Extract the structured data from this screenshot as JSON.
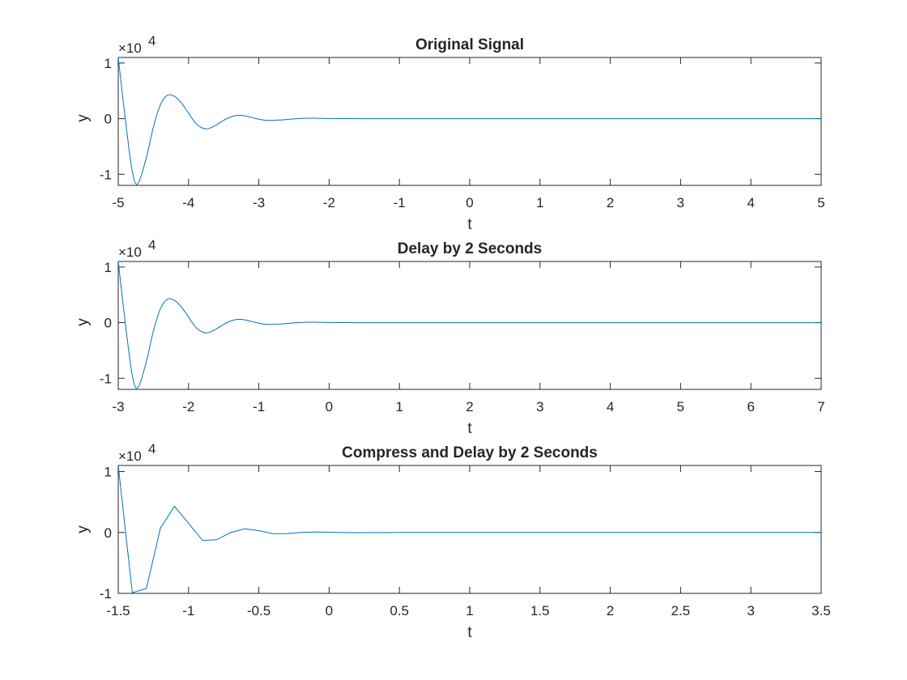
{
  "figure": {
    "line_color": "#0072BD",
    "axes_color": "#262626",
    "background": "#ffffff"
  },
  "chart_data": [
    {
      "type": "line",
      "title": "Original Signal",
      "xlabel": "t",
      "ylabel": "y",
      "y_exponent_label": "×10",
      "y_exponent": "4",
      "xlim": [
        -5,
        5
      ],
      "ylim": [
        -12000,
        11000
      ],
      "xticks": [
        -5,
        -4,
        -3,
        -2,
        -1,
        0,
        1,
        2,
        3,
        4,
        5
      ],
      "xtick_labels": [
        "-5",
        "-4",
        "-3",
        "-2",
        "-1",
        "0",
        "1",
        "2",
        "3",
        "4",
        "5"
      ],
      "yticks": [
        -10000,
        0,
        10000
      ],
      "ytick_labels": [
        "-1",
        "0",
        "1"
      ],
      "grid": false,
      "series": [
        {
          "x": [
            -5,
            -4.9,
            -4.8,
            -4.72,
            -4.6,
            -4.5,
            -4.4,
            -4.3,
            -4.2,
            -4.1,
            -4.0,
            -3.9,
            -3.8,
            -3.72,
            -3.6,
            -3.5,
            -3.4,
            -3.3,
            -3.2,
            -3.1,
            -3.0,
            -2.9,
            -2.8,
            -2.7,
            -2.5,
            -2.3,
            -2.2,
            -2.0,
            -1.8,
            -1.5,
            -1.0,
            -0.5,
            0,
            1,
            2,
            3,
            4,
            5
          ],
          "y": [
            11000,
            0,
            -9500,
            -11700,
            -7000,
            -1500,
            2500,
            4200,
            4000,
            2800,
            1000,
            -800,
            -1700,
            -1800,
            -1100,
            -300,
            300,
            600,
            500,
            200,
            -100,
            -300,
            -320,
            -250,
            -40,
            80,
            90,
            30,
            10,
            0,
            0,
            0,
            0,
            0,
            0,
            0,
            0,
            0
          ]
        }
      ]
    },
    {
      "type": "line",
      "title": "Delay by 2 Seconds",
      "xlabel": "t",
      "ylabel": "y",
      "y_exponent_label": "×10",
      "y_exponent": "4",
      "xlim": [
        -3,
        7
      ],
      "ylim": [
        -12000,
        11000
      ],
      "xticks": [
        -3,
        -2,
        -1,
        0,
        1,
        2,
        3,
        4,
        5,
        6,
        7
      ],
      "xtick_labels": [
        "-3",
        "-2",
        "-1",
        "0",
        "1",
        "2",
        "3",
        "4",
        "5",
        "6",
        "7"
      ],
      "yticks": [
        -10000,
        0,
        10000
      ],
      "ytick_labels": [
        "-1",
        "0",
        "1"
      ],
      "grid": false,
      "series": [
        {
          "x": [
            -3,
            -2.9,
            -2.8,
            -2.72,
            -2.6,
            -2.5,
            -2.4,
            -2.3,
            -2.2,
            -2.1,
            -2.0,
            -1.9,
            -1.8,
            -1.72,
            -1.6,
            -1.5,
            -1.4,
            -1.3,
            -1.2,
            -1.1,
            -1.0,
            -0.9,
            -0.8,
            -0.7,
            -0.5,
            -0.3,
            -0.2,
            0,
            0.2,
            0.5,
            1,
            1.5,
            2,
            3,
            4,
            5,
            6,
            7
          ],
          "y": [
            11000,
            0,
            -9500,
            -11700,
            -7000,
            -1500,
            2500,
            4200,
            4000,
            2800,
            1000,
            -800,
            -1700,
            -1800,
            -1100,
            -300,
            300,
            600,
            500,
            200,
            -100,
            -300,
            -320,
            -250,
            -40,
            80,
            90,
            30,
            10,
            0,
            0,
            0,
            0,
            0,
            0,
            0,
            0,
            0
          ]
        }
      ]
    },
    {
      "type": "line",
      "title": "Compress and Delay by 2 Seconds",
      "xlabel": "t",
      "ylabel": "y",
      "y_exponent_label": "×10",
      "y_exponent": "4",
      "xlim": [
        -1.5,
        3.5
      ],
      "ylim": [
        -10000,
        11000
      ],
      "xticks": [
        -1.5,
        -1,
        -0.5,
        0,
        0.5,
        1,
        1.5,
        2,
        2.5,
        3,
        3.5
      ],
      "xtick_labels": [
        "-1.5",
        "-1",
        "-0.5",
        "0",
        "0.5",
        "1",
        "1.5",
        "2",
        "2.5",
        "3",
        "3.5"
      ],
      "yticks": [
        -10000,
        0,
        10000
      ],
      "ytick_labels": [
        "-1",
        "0",
        "1"
      ],
      "grid": false,
      "series": [
        {
          "x": [
            -1.5,
            -1.4,
            -1.3,
            -1.2,
            -1.1,
            -1.0,
            -0.9,
            -0.8,
            -0.7,
            -0.6,
            -0.5,
            -0.4,
            -0.3,
            -0.2,
            -0.1,
            0,
            0.1,
            0.2,
            0.5,
            1,
            1.5,
            2,
            2.5,
            3,
            3.5
          ],
          "y": [
            11000,
            -9900,
            -9200,
            700,
            4300,
            1500,
            -1300,
            -1200,
            0,
            600,
            300,
            -200,
            -180,
            0,
            80,
            50,
            -20,
            -40,
            0,
            0,
            0,
            0,
            0,
            0,
            0
          ]
        }
      ]
    }
  ]
}
